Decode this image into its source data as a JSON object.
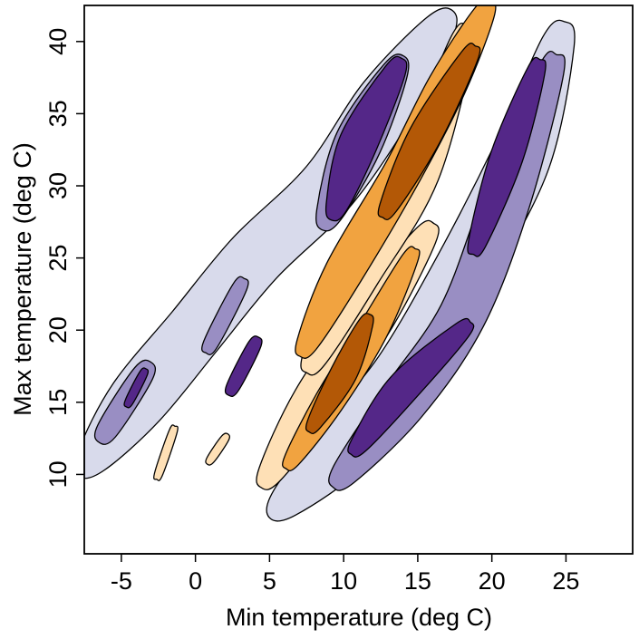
{
  "chart_data": {
    "type": "contour",
    "title": "",
    "xlabel": "Min temperature (deg C)",
    "ylabel": "Max temperature (deg C)",
    "xlim": [
      -7.5,
      29.5
    ],
    "ylim": [
      4.5,
      42.5
    ],
    "xticks": [
      -5,
      0,
      5,
      10,
      15,
      20,
      25
    ],
    "yticks": [
      10,
      15,
      20,
      25,
      30,
      35,
      40
    ],
    "xtick_labels": [
      "-5",
      "0",
      "5",
      "10",
      "15",
      "20",
      "25"
    ],
    "ytick_labels": [
      "10",
      "15",
      "20",
      "25",
      "30",
      "35",
      "40"
    ],
    "grid": false,
    "legend": "none",
    "colors": {
      "purple_light": "#d8daeb",
      "purple_mid": "#998ec3",
      "purple_dark": "#542788",
      "orange_light": "#fee0b6",
      "orange_mid": "#f1a340",
      "orange_dark": "#b35806"
    },
    "bands": [
      {
        "level": "purple_light",
        "ridges": [
          {
            "x": [
              -7.0,
              -4.0,
              0.0,
              4.0,
              9.0,
              13.0,
              16.5
            ],
            "y": [
              11.0,
              15.0,
              20.0,
              25.0,
              30.0,
              36.0,
              41.0
            ],
            "width": 2.0
          },
          {
            "x": [
              6.0,
              10.0,
              14.0,
              18.0,
              22.0,
              24.5
            ],
            "y": [
              8.0,
              12.0,
              17.0,
              24.0,
              32.0,
              40.0
            ],
            "width": 2.0
          }
        ]
      },
      {
        "level": "purple_mid",
        "ridges": [
          {
            "x": [
              -6.0,
              -3.5
            ],
            "y": [
              13.0,
              17.0
            ],
            "width": 1.3
          },
          {
            "x": [
              1.0,
              3.0
            ],
            "y": [
              19.0,
              23.0
            ],
            "width": 0.9
          },
          {
            "x": [
              9.0,
              11.0,
              13.5
            ],
            "y": [
              28.0,
              33.0,
              38.0
            ],
            "width": 1.6
          },
          {
            "x": [
              10.0,
              14.0,
              18.0,
              21.0,
              24.0
            ],
            "y": [
              10.0,
              15.0,
              21.0,
              29.0,
              38.0
            ],
            "width": 1.6
          }
        ]
      },
      {
        "level": "purple_dark",
        "ridges": [
          {
            "x": [
              -4.5,
              -3.5
            ],
            "y": [
              15.0,
              17.0
            ],
            "width": 0.5
          },
          {
            "x": [
              2.5,
              4.0
            ],
            "y": [
              16.0,
              19.0
            ],
            "width": 0.8
          },
          {
            "x": [
              9.5,
              11.0,
              13.5
            ],
            "y": [
              28.5,
              33.0,
              38.0
            ],
            "width": 1.3
          },
          {
            "x": [
              11.0,
              14.0,
              18.0
            ],
            "y": [
              12.0,
              16.0,
              20.0
            ],
            "width": 1.1
          },
          {
            "x": [
              19.0,
              21.0,
              23.0
            ],
            "y": [
              26.0,
              32.0,
              38.0
            ],
            "width": 1.1
          }
        ]
      },
      {
        "level": "orange_light",
        "ridges": [
          {
            "x": [
              -2.5,
              -1.5
            ],
            "y": [
              10.0,
              13.0
            ],
            "width": 0.5
          },
          {
            "x": [
              1.0,
              2.0
            ],
            "y": [
              11.0,
              12.5
            ],
            "width": 0.5
          },
          {
            "x": [
              5.0,
              8.0,
              12.0,
              15.5
            ],
            "y": [
              10.0,
              15.0,
              21.0,
              26.5
            ],
            "width": 1.5
          },
          {
            "x": [
              8.0,
              11.0,
              15.0,
              18.0
            ],
            "y": [
              18.0,
              24.0,
              31.0,
              40.0
            ],
            "width": 1.5
          }
        ]
      },
      {
        "level": "orange_mid",
        "ridges": [
          {
            "x": [
              6.5,
              9.0,
              12.0,
              14.5
            ],
            "y": [
              11.0,
              15.0,
              20.0,
              25.0
            ],
            "width": 1.0
          },
          {
            "x": [
              7.5,
              10.0,
              14.0,
              17.0,
              19.5
            ],
            "y": [
              19.0,
              24.0,
              31.0,
              37.0,
              42.0
            ],
            "width": 1.3
          }
        ]
      },
      {
        "level": "orange_dark",
        "ridges": [
          {
            "x": [
              8.0,
              10.0,
              11.5
            ],
            "y": [
              13.5,
              17.0,
              20.5
            ],
            "width": 0.9
          },
          {
            "x": [
              13.0,
              15.5,
              18.5
            ],
            "y": [
              28.5,
              33.5,
              39.0
            ],
            "width": 1.1
          }
        ]
      }
    ]
  }
}
